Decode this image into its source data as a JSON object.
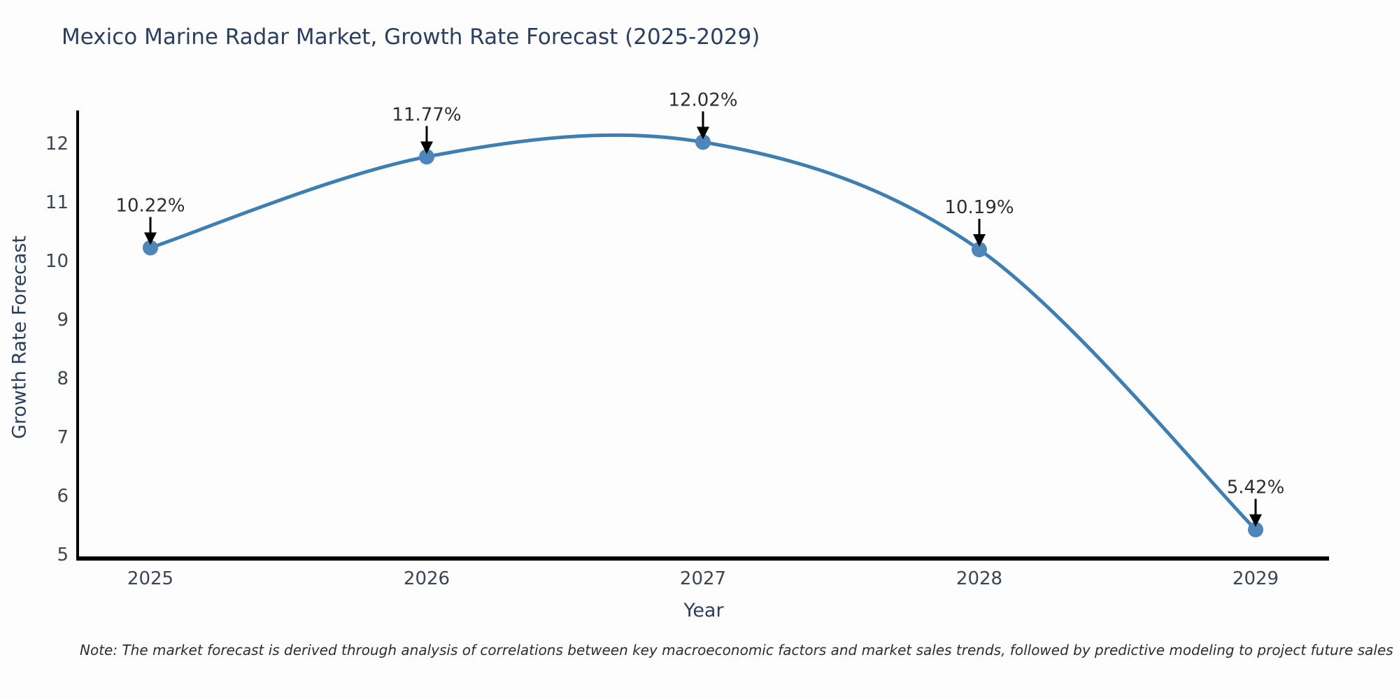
{
  "chart_data": {
    "type": "line",
    "title": "Mexico Marine Radar Market, Growth Rate Forecast (2025-2029)",
    "xlabel": "Year",
    "ylabel": "Growth Rate Forecast",
    "categories": [
      "2025",
      "2026",
      "2027",
      "2028",
      "2029"
    ],
    "series": [
      {
        "name": "Growth Rate Forecast",
        "values": [
          10.22,
          11.77,
          12.02,
          10.19,
          5.42
        ],
        "point_labels": [
          "10.22%",
          "11.77%",
          "12.02%",
          "10.19%",
          "5.42%"
        ]
      }
    ],
    "y_ticks": [
      12,
      11,
      10,
      9,
      8,
      7,
      6,
      5
    ],
    "ylim": [
      4.9,
      12.55
    ],
    "line_shape": "spline",
    "grid": false,
    "legend": "none",
    "colors": {
      "line": "#3d7eb3",
      "marker": "#4f86ba",
      "axis": "#000000",
      "title": "#2a3f5f",
      "tick_label": "#3a4654",
      "annotation": "#2d2d2d"
    },
    "note": "Note: The market forecast is derived through analysis of correlations between key macroeconomic factors and market sales trends, followed by predictive modeling to project future sales"
  }
}
